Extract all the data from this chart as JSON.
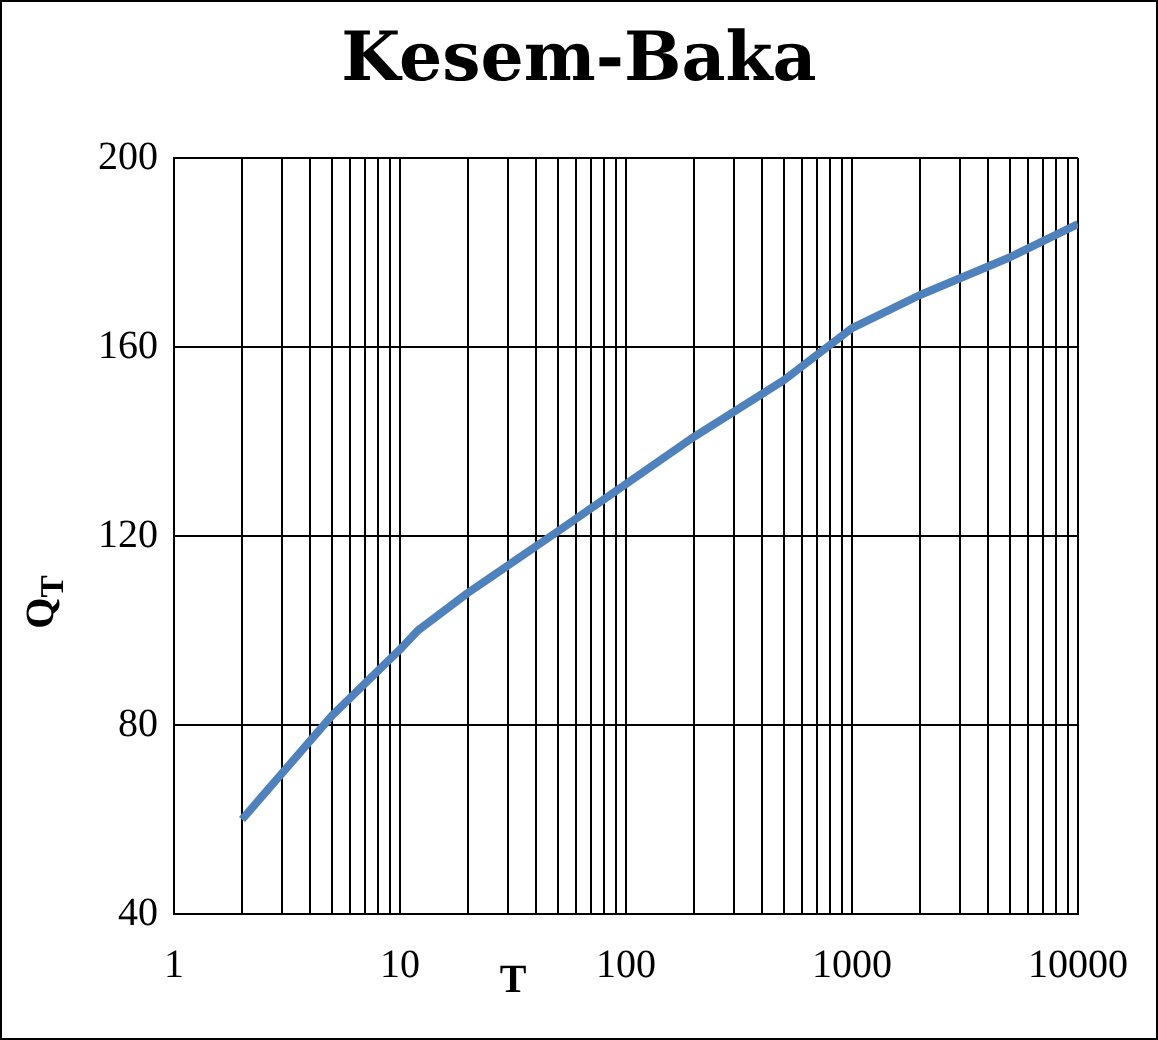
{
  "chart_data": {
    "type": "line",
    "title": "Kesem-Baka",
    "xlabel": "T",
    "ylabel": "Q$_{T}$",
    "x": [
      2,
      5,
      10,
      12,
      20,
      50,
      100,
      200,
      500,
      1000,
      2000,
      5000,
      10000
    ],
    "series": [
      {
        "color": "#4f81bd",
        "values": [
          60,
          82,
          96,
          100,
          108,
          121,
          131,
          141,
          153,
          164,
          171,
          179,
          186
        ]
      }
    ],
    "log": "x",
    "xlim": [
      1,
      10000
    ],
    "xticks": [
      1,
      {
        "value": 2,
        "label": null
      },
      {
        "value": 3,
        "label": null
      },
      {
        "value": 4,
        "label": null
      },
      {
        "value": 5,
        "label": null
      },
      {
        "value": 6,
        "label": null
      },
      {
        "value": 7,
        "label": null
      },
      {
        "value": 8,
        "label": null
      },
      {
        "value": 9,
        "label": null
      },
      10,
      {
        "value": 20,
        "label": null
      },
      {
        "value": 30,
        "label": null
      },
      {
        "value": 40,
        "label": null
      },
      {
        "value": 50,
        "label": null
      },
      {
        "value": 60,
        "label": null
      },
      {
        "value": 70,
        "label": null
      },
      {
        "value": 80,
        "label": null
      },
      {
        "value": 90,
        "label": null
      },
      100,
      {
        "value": 200,
        "label": null
      },
      {
        "value": 300,
        "label": null
      },
      {
        "value": 400,
        "label": null
      },
      {
        "value": 500,
        "label": null
      },
      {
        "value": 600,
        "label": null
      },
      {
        "value": 700,
        "label": null
      },
      {
        "value": 800,
        "label": null
      },
      {
        "value": 900,
        "label": null
      },
      1000,
      {
        "value": 2000,
        "label": null
      },
      {
        "value": 3000,
        "label": null
      },
      {
        "value": 4000,
        "label": null
      },
      {
        "value": 5000,
        "label": null
      },
      {
        "value": 6000,
        "label": null
      },
      {
        "value": 7000,
        "label": null
      },
      {
        "value": 8000,
        "label": null
      },
      {
        "value": 9000,
        "label": null
      },
      10000
    ],
    "ylim": [
      40,
      200
    ],
    "yticks": [
      40,
      80,
      120,
      160,
      200
    ],
    "grid": true,
    "legend": false,
    "marker": "none",
    "line_style": "solid"
  }
}
